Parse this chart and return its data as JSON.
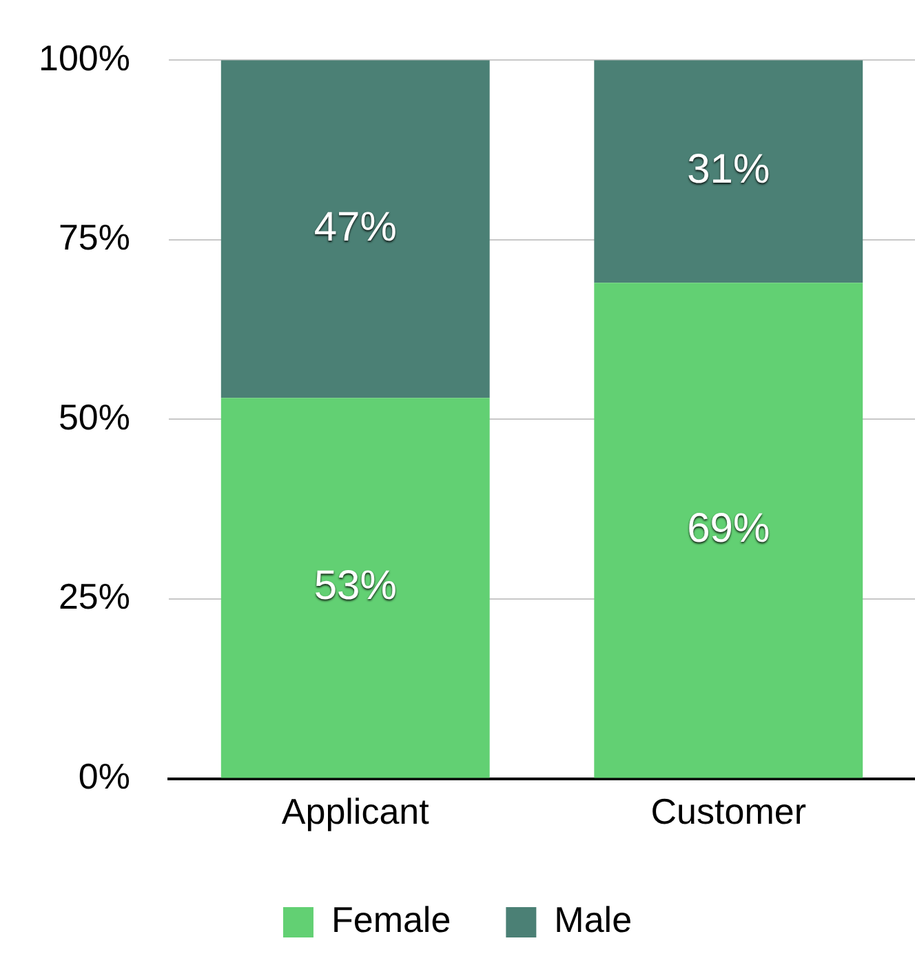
{
  "chart_data": {
    "type": "bar",
    "stacked": true,
    "categories": [
      "Applicant",
      "Customer"
    ],
    "series": [
      {
        "name": "Female",
        "color": "#62d073",
        "values": [
          53,
          69
        ],
        "value_labels": [
          "53%",
          "69%"
        ]
      },
      {
        "name": "Male",
        "color": "#4b8075",
        "values": [
          47,
          31
        ],
        "value_labels": [
          "47%",
          "31%"
        ]
      }
    ],
    "ylim": [
      0,
      100
    ],
    "yticks": [
      {
        "value": 0,
        "label": "0%"
      },
      {
        "value": 25,
        "label": "25%"
      },
      {
        "value": 50,
        "label": "50%"
      },
      {
        "value": 75,
        "label": "75%"
      },
      {
        "value": 100,
        "label": "100%"
      }
    ],
    "grid": "y",
    "legend": "bottom"
  }
}
